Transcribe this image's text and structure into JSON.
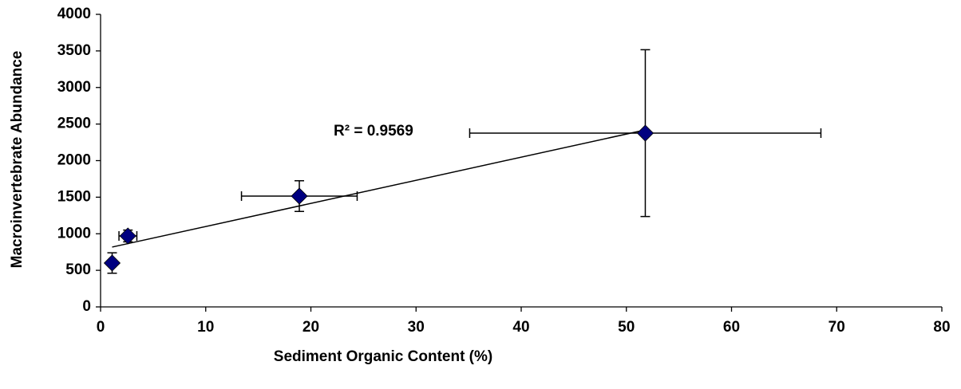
{
  "chart_data": {
    "type": "scatter",
    "xlabel": "Sediment Organic Content (%)",
    "ylabel": "Macroinvertebrate Abundance",
    "annotation": "R² = 0.9569",
    "series": [
      {
        "color": "#000080",
        "x": [
          1.1,
          2.6,
          18.9,
          51.8
        ],
        "values": [
          600,
          970,
          1515,
          2376
        ],
        "xerr": [
          0.3,
          0.85,
          5.5,
          16.7
        ],
        "yerr": [
          140,
          80,
          210,
          1140
        ]
      }
    ],
    "trendline": {
      "x": [
        1.1,
        51.8
      ],
      "y": [
        818,
        2420
      ],
      "color": "#000000"
    },
    "xlim": [
      0,
      80
    ],
    "xticks": [
      0,
      10,
      20,
      30,
      40,
      50,
      60,
      70,
      80
    ],
    "ylim": [
      0,
      4000
    ],
    "yticks": [
      0,
      500,
      1000,
      1500,
      2000,
      2500,
      3000,
      3500,
      4000
    ]
  }
}
